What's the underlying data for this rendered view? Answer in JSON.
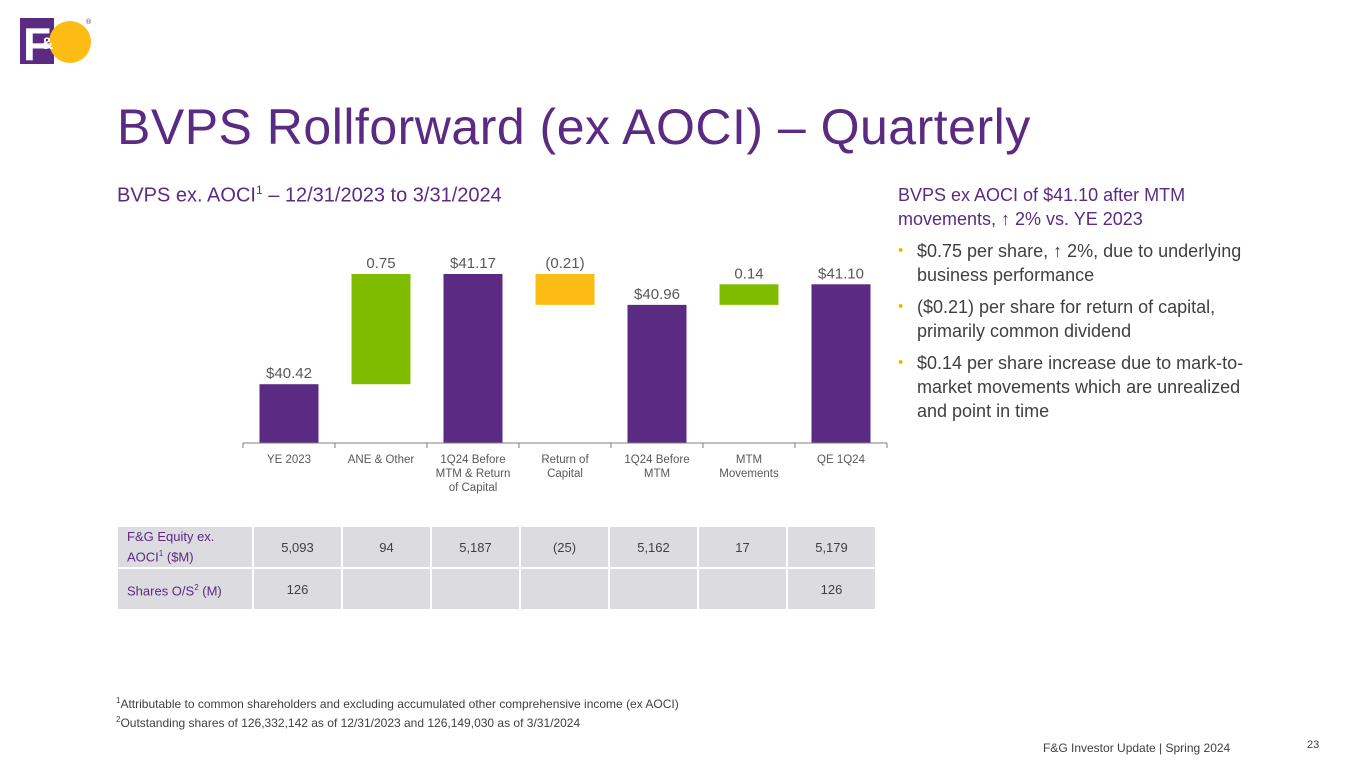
{
  "slide": {
    "title": "BVPS Rollforward (ex AOCI) – Quarterly",
    "subtitle_prefix": "BVPS ex. AOCI",
    "subtitle_sup": "1",
    "subtitle_suffix": " – 12/31/2023 to 3/31/2024",
    "footer": "F&G Investor Update | Spring 2024",
    "page_number": "23"
  },
  "logo": {
    "text_f": "F",
    "text_amp": "&",
    "text_g": "G",
    "reg": "®"
  },
  "colors": {
    "purple": "#5b2a82",
    "green": "#7fbc00",
    "gold": "#fcbc14",
    "gray_text": "#595959",
    "axis": "#7f7f7f",
    "table_bg": "#dcdce0"
  },
  "chart_data": {
    "type": "bar",
    "subtype": "waterfall",
    "categories": [
      "YE 2023",
      "ANE & Other",
      "1Q24 Before MTM & Return of Capital",
      "Return of Capital",
      "1Q24 Before MTM",
      "MTM Movements",
      "QE 1Q24"
    ],
    "category_lines": [
      [
        "YE 2023"
      ],
      [
        "ANE & Other"
      ],
      [
        "1Q24 Before",
        "MTM & Return",
        "of Capital"
      ],
      [
        "Return of",
        "Capital"
      ],
      [
        "1Q24 Before",
        "MTM"
      ],
      [
        "MTM",
        "Movements"
      ],
      [
        "QE 1Q24"
      ]
    ],
    "values": [
      40.42,
      0.75,
      41.17,
      -0.21,
      40.96,
      0.14,
      41.1
    ],
    "bar_kinds": [
      "total",
      "increase",
      "total",
      "decrease",
      "total",
      "increase",
      "total"
    ],
    "data_labels": [
      "$40.42",
      "0.75",
      "$41.17",
      "(0.21)",
      "$40.96",
      "0.14",
      "$41.10"
    ],
    "ylim": [
      40.02,
      41.17
    ],
    "title": "",
    "xlabel": "",
    "ylabel": "",
    "grid": false,
    "legend": "none"
  },
  "table": {
    "rows": [
      {
        "label": "F&G Equity ex. AOCI",
        "label_sup": "1",
        "label_suffix": " ($M)",
        "cells": [
          "5,093",
          "94",
          "5,187",
          "(25)",
          "5,162",
          "17",
          "5,179"
        ]
      },
      {
        "label": "Shares O/S",
        "label_sup": "2",
        "label_suffix": " (M)",
        "cells": [
          "126",
          "",
          "",
          "",
          "",
          "",
          "126"
        ]
      }
    ]
  },
  "side": {
    "headline": "BVPS ex AOCI of $41.10 after MTM movements, ↑ 2% vs. YE 2023",
    "bullet_glyph": "•",
    "bullets": [
      "$0.75 per share, ↑ 2%, due to underlying business performance",
      "($0.21) per share for return of capital, primarily common dividend",
      "$0.14 per share increase due to mark-to-market movements which are unrealized and point in time"
    ]
  },
  "footnotes": [
    {
      "sup": "1",
      "text": "Attributable to common shareholders and excluding accumulated other comprehensive income (ex AOCI)"
    },
    {
      "sup": "2",
      "text": "Outstanding shares of 126,332,142 as of 12/31/2023 and 126,149,030 as of 3/31/2024"
    }
  ]
}
